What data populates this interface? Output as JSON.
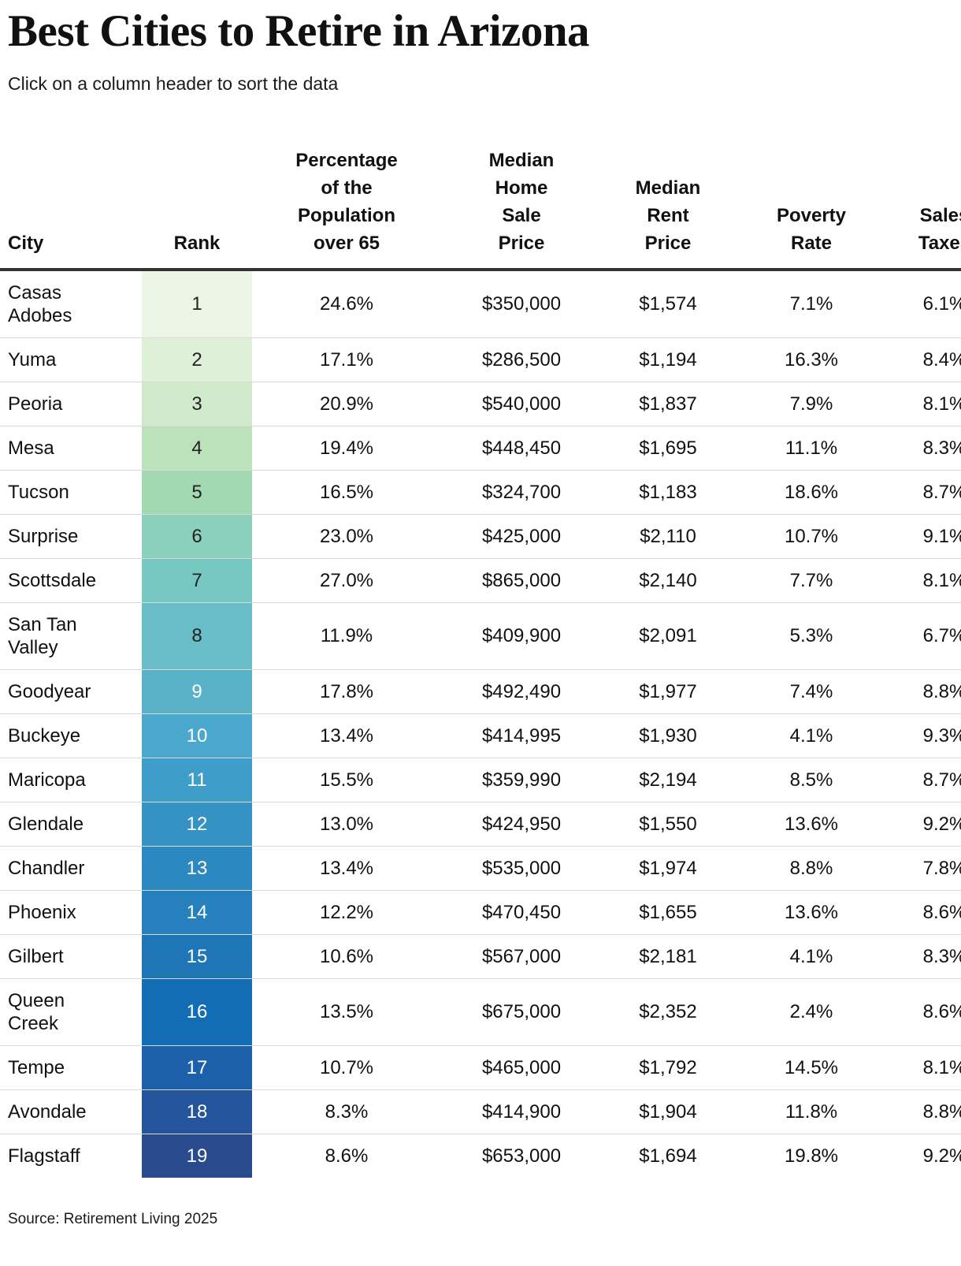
{
  "page": {
    "title": "Best Cities to Retire in Arizona",
    "subtitle": "Click on a column header to sort the data",
    "source": "Source: Retirement Living 2025"
  },
  "chart_data": {
    "type": "table",
    "title": "Best Cities to Retire in Arizona",
    "subtitle": "Click on a column header to sort the data",
    "source": "Source: Retirement Living 2025",
    "layout_hint": "rank column has green-to-blue gradient background; table clipped at right edge; numeric columns centered",
    "columns": [
      {
        "key": "city",
        "label": "City",
        "align": "left"
      },
      {
        "key": "rank",
        "label": "Rank",
        "align": "center"
      },
      {
        "key": "pct65",
        "label": "Percentage\nof the\nPopulation\nover 65",
        "align": "center"
      },
      {
        "key": "home",
        "label": "Median\nHome\nSale\nPrice",
        "align": "center"
      },
      {
        "key": "rent",
        "label": "Median\nRent\nPrice",
        "align": "center"
      },
      {
        "key": "poverty",
        "label": "Poverty\nRate",
        "align": "center"
      },
      {
        "key": "sales",
        "label": "Sales\nTaxes",
        "align": "center"
      }
    ],
    "rank_scale": {
      "description": "sequential green-blue (GnBu-like) fill per rank",
      "dark_text": "#222222",
      "light_text": "#ffffff",
      "light_text_from_rank": 9,
      "bgs": [
        "#edf6e6",
        "#dff0d9",
        "#d0e9cb",
        "#bce2bc",
        "#a3d9b1",
        "#8bd0ba",
        "#77c8c2",
        "#68bdc7",
        "#5ab2c9",
        "#4aa8cc",
        "#3f9dc9",
        "#3492c5",
        "#2c88c1",
        "#2580bd",
        "#1e76b7",
        "#136db5",
        "#1c60a9",
        "#24549c",
        "#294b8d"
      ]
    },
    "rows": [
      {
        "city": "Casas Adobes",
        "rank": 1,
        "pct65": "24.6%",
        "home": "$350,000",
        "rent": "$1,574",
        "poverty": "7.1%",
        "sales": "6.1%"
      },
      {
        "city": "Yuma",
        "rank": 2,
        "pct65": "17.1%",
        "home": "$286,500",
        "rent": "$1,194",
        "poverty": "16.3%",
        "sales": "8.4%"
      },
      {
        "city": "Peoria",
        "rank": 3,
        "pct65": "20.9%",
        "home": "$540,000",
        "rent": "$1,837",
        "poverty": "7.9%",
        "sales": "8.1%"
      },
      {
        "city": "Mesa",
        "rank": 4,
        "pct65": "19.4%",
        "home": "$448,450",
        "rent": "$1,695",
        "poverty": "11.1%",
        "sales": "8.3%"
      },
      {
        "city": "Tucson",
        "rank": 5,
        "pct65": "16.5%",
        "home": "$324,700",
        "rent": "$1,183",
        "poverty": "18.6%",
        "sales": "8.7%"
      },
      {
        "city": "Surprise",
        "rank": 6,
        "pct65": "23.0%",
        "home": "$425,000",
        "rent": "$2,110",
        "poverty": "10.7%",
        "sales": "9.1%"
      },
      {
        "city": "Scottsdale",
        "rank": 7,
        "pct65": "27.0%",
        "home": "$865,000",
        "rent": "$2,140",
        "poverty": "7.7%",
        "sales": "8.1%"
      },
      {
        "city": "San Tan Valley",
        "rank": 8,
        "pct65": "11.9%",
        "home": "$409,900",
        "rent": "$2,091",
        "poverty": "5.3%",
        "sales": "6.7%"
      },
      {
        "city": "Goodyear",
        "rank": 9,
        "pct65": "17.8%",
        "home": "$492,490",
        "rent": "$1,977",
        "poverty": "7.4%",
        "sales": "8.8%"
      },
      {
        "city": "Buckeye",
        "rank": 10,
        "pct65": "13.4%",
        "home": "$414,995",
        "rent": "$1,930",
        "poverty": "4.1%",
        "sales": "9.3%"
      },
      {
        "city": "Maricopa",
        "rank": 11,
        "pct65": "15.5%",
        "home": "$359,990",
        "rent": "$2,194",
        "poverty": "8.5%",
        "sales": "8.7%"
      },
      {
        "city": "Glendale",
        "rank": 12,
        "pct65": "13.0%",
        "home": "$424,950",
        "rent": "$1,550",
        "poverty": "13.6%",
        "sales": "9.2%"
      },
      {
        "city": "Chandler",
        "rank": 13,
        "pct65": "13.4%",
        "home": "$535,000",
        "rent": "$1,974",
        "poverty": "8.8%",
        "sales": "7.8%"
      },
      {
        "city": "Phoenix",
        "rank": 14,
        "pct65": "12.2%",
        "home": "$470,450",
        "rent": "$1,655",
        "poverty": "13.6%",
        "sales": "8.6%"
      },
      {
        "city": "Gilbert",
        "rank": 15,
        "pct65": "10.6%",
        "home": "$567,000",
        "rent": "$2,181",
        "poverty": "4.1%",
        "sales": "8.3%"
      },
      {
        "city": "Queen Creek",
        "rank": 16,
        "pct65": "13.5%",
        "home": "$675,000",
        "rent": "$2,352",
        "poverty": "2.4%",
        "sales": "8.6%"
      },
      {
        "city": "Tempe",
        "rank": 17,
        "pct65": "10.7%",
        "home": "$465,000",
        "rent": "$1,792",
        "poverty": "14.5%",
        "sales": "8.1%"
      },
      {
        "city": "Avondale",
        "rank": 18,
        "pct65": "8.3%",
        "home": "$414,900",
        "rent": "$1,904",
        "poverty": "11.8%",
        "sales": "8.8%"
      },
      {
        "city": "Flagstaff",
        "rank": 19,
        "pct65": "8.6%",
        "home": "$653,000",
        "rent": "$1,694",
        "poverty": "19.8%",
        "sales": "9.2%"
      }
    ]
  }
}
